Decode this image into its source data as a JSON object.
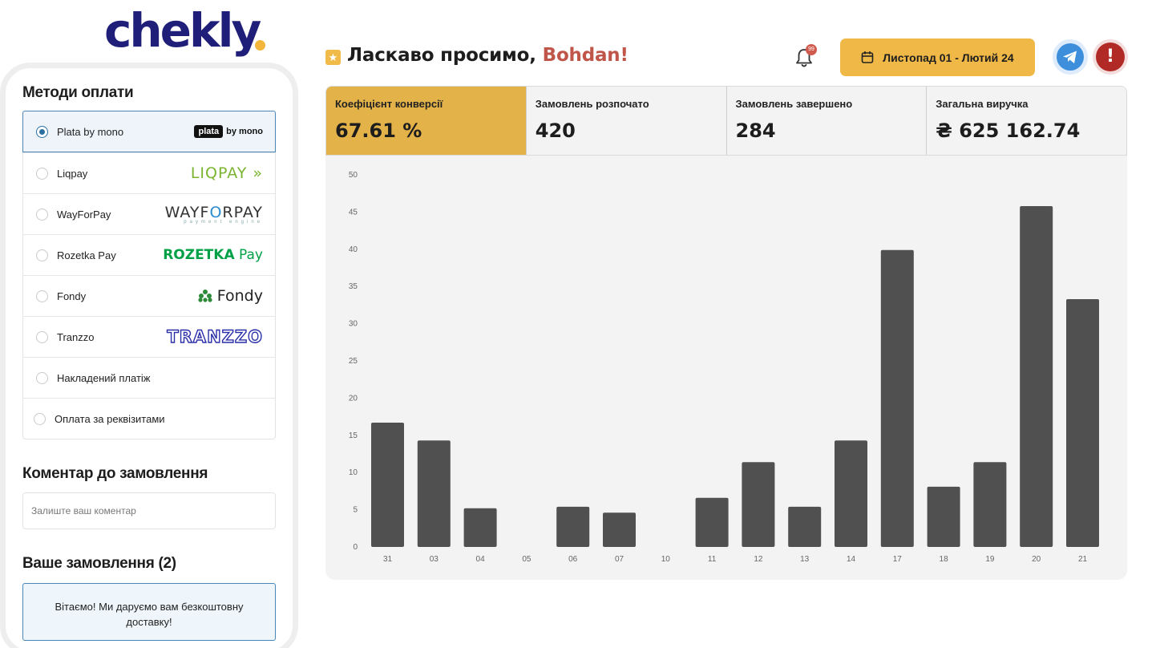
{
  "brand": {
    "logo_text": "chekly"
  },
  "checkout": {
    "payment_title": "Методи оплати",
    "payment_methods": [
      {
        "label": "Plata by mono",
        "logo": "plata-by-mono-logo",
        "logo_text_a": "plata",
        "logo_text_b": "by mono",
        "selected": true
      },
      {
        "label": "Liqpay",
        "logo": "liqpay-logo",
        "logo_text": "LIQPAY »",
        "selected": false
      },
      {
        "label": "WayForPay",
        "logo": "wayforpay-logo",
        "logo_text_a": "WAYF",
        "logo_text_b": "O",
        "logo_text_c": "RPAY",
        "logo_sub": "payment engine",
        "selected": false
      },
      {
        "label": "Rozetka Pay",
        "logo": "rozetka-pay-logo",
        "logo_text_a": "ROZETKA",
        "logo_text_b": " Pay",
        "selected": false
      },
      {
        "label": "Fondy",
        "logo": "fondy-logo",
        "logo_text": "Fondy",
        "selected": false
      },
      {
        "label": "Tranzzo",
        "logo": "tranzzo-logo",
        "logo_text": "TRANZZO",
        "selected": false
      },
      {
        "label": "Накладений платіж",
        "selected": false
      },
      {
        "label": "Оплата за реквізитами",
        "selected": false
      }
    ],
    "comment_title": "Коментар до замовлення",
    "comment_placeholder": "Залиште ваш коментар",
    "order_title": "Ваше замовлення (2)",
    "promo_text": "Вітаємо! Ми даруємо вам безкоштовну доставку!"
  },
  "header": {
    "greeting": "Ласкаво просимо,",
    "user_name": "Bohdan!",
    "notifications_count": "99",
    "date_range": "Листопад 01 - Лютий 24"
  },
  "stats": [
    {
      "label": "Коефіцієнт конверсії",
      "value": "67.61 %"
    },
    {
      "label": "Замовлень розпочато",
      "value": "420"
    },
    {
      "label": "Замовлень завершено",
      "value": "284"
    },
    {
      "label": "Загальна виручка",
      "value": "₴ 625 162.74"
    }
  ],
  "colors": {
    "accent": "#e3b248",
    "button": "#f0b847",
    "bar": "#505050",
    "user_name": "#c0564a"
  },
  "chart_data": {
    "type": "bar",
    "categories": [
      "31",
      "03",
      "04",
      "05",
      "06",
      "07",
      "10",
      "11",
      "12",
      "13",
      "14",
      "17",
      "18",
      "19",
      "20",
      "21"
    ],
    "values": [
      16.7,
      14.3,
      5.2,
      0,
      5.4,
      4.6,
      0,
      6.6,
      11.4,
      5.4,
      14.3,
      39.9,
      8.1,
      11.4,
      45.8,
      33.3
    ],
    "yticks": [
      0,
      5,
      10,
      15,
      20,
      25,
      30,
      35,
      40,
      45,
      50
    ],
    "ylim": [
      0,
      50
    ],
    "grid": false,
    "title": "",
    "xlabel": "",
    "ylabel": ""
  }
}
